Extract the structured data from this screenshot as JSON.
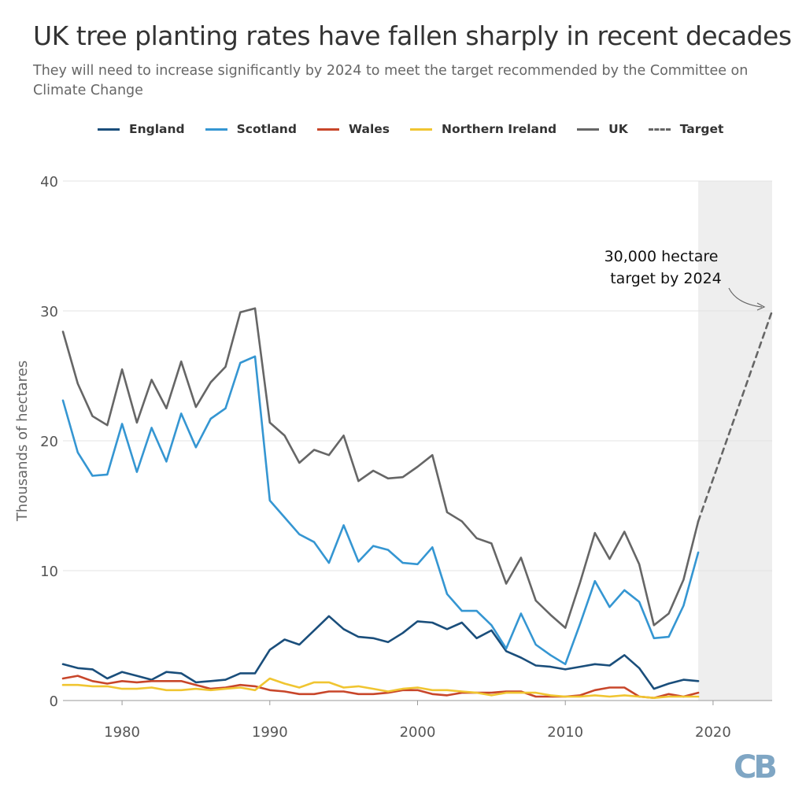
{
  "title": "UK tree planting rates have fallen sharply in recent decades",
  "subtitle": "They will need to increase significantly by 2024 to meet the target recommended by the Committee on Climate Change",
  "annotation": [
    "30,000 hectare",
    "target by 2024"
  ],
  "logo": "CB",
  "colors": {
    "England": "#1a4e7b",
    "Scotland": "#3596d2",
    "Wales": "#c8462a",
    "Northern Ireland": "#f0c531",
    "UK": "#666666",
    "Target": "#666666",
    "shade": "#eeeeee"
  },
  "chart_data": {
    "type": "line",
    "title": "UK tree planting rates have fallen sharply in recent decades",
    "xlabel": "",
    "ylabel": "Thousands of hectares",
    "xlim": [
      1976,
      2024
    ],
    "ylim": [
      0,
      40
    ],
    "x_ticks": [
      1980,
      1990,
      2000,
      2010,
      2020
    ],
    "y_ticks": [
      0,
      10,
      20,
      30,
      40
    ],
    "legend_position": "top",
    "shaded_range": [
      2019,
      2024
    ],
    "x": [
      1976,
      1977,
      1978,
      1979,
      1980,
      1981,
      1982,
      1983,
      1984,
      1985,
      1986,
      1987,
      1988,
      1989,
      1990,
      1991,
      1992,
      1993,
      1994,
      1995,
      1996,
      1997,
      1998,
      1999,
      2000,
      2001,
      2002,
      2003,
      2004,
      2005,
      2006,
      2007,
      2008,
      2009,
      2010,
      2011,
      2012,
      2013,
      2014,
      2015,
      2016,
      2017,
      2018,
      2019
    ],
    "series": [
      {
        "name": "England",
        "values": [
          2.8,
          2.5,
          2.4,
          1.7,
          2.2,
          1.9,
          1.6,
          2.2,
          2.1,
          1.4,
          1.5,
          1.6,
          2.1,
          2.1,
          3.9,
          4.7,
          4.3,
          5.4,
          6.5,
          5.5,
          4.9,
          4.8,
          4.5,
          5.2,
          6.1,
          6.0,
          5.5,
          6.0,
          4.8,
          5.4,
          3.8,
          3.3,
          2.7,
          2.6,
          2.4,
          2.6,
          2.8,
          2.7,
          3.5,
          2.5,
          0.9,
          1.3,
          1.6,
          1.5
        ]
      },
      {
        "name": "Scotland",
        "values": [
          23.1,
          19.1,
          17.3,
          17.4,
          21.3,
          17.6,
          21.0,
          18.4,
          22.1,
          19.5,
          21.7,
          22.5,
          26.0,
          26.5,
          15.4,
          14.1,
          12.8,
          12.2,
          10.6,
          13.5,
          10.7,
          11.9,
          11.6,
          10.6,
          10.5,
          11.8,
          8.2,
          6.9,
          6.9,
          5.8,
          4.0,
          6.7,
          4.3,
          3.5,
          2.8,
          5.9,
          9.2,
          7.2,
          8.5,
          7.6,
          4.8,
          4.9,
          7.3,
          11.4
        ]
      },
      {
        "name": "Wales",
        "values": [
          1.7,
          1.9,
          1.5,
          1.3,
          1.5,
          1.4,
          1.5,
          1.5,
          1.5,
          1.2,
          0.9,
          1.0,
          1.2,
          1.1,
          0.8,
          0.7,
          0.5,
          0.5,
          0.7,
          0.7,
          0.5,
          0.5,
          0.6,
          0.8,
          0.8,
          0.5,
          0.4,
          0.6,
          0.6,
          0.6,
          0.7,
          0.7,
          0.3,
          0.3,
          0.3,
          0.4,
          0.8,
          1.0,
          1.0,
          0.3,
          0.2,
          0.5,
          0.3,
          0.6
        ]
      },
      {
        "name": "Northern Ireland",
        "values": [
          1.2,
          1.2,
          1.1,
          1.1,
          0.9,
          0.9,
          1.0,
          0.8,
          0.8,
          0.9,
          0.8,
          0.9,
          1.0,
          0.8,
          1.7,
          1.3,
          1.0,
          1.4,
          1.4,
          1.0,
          1.1,
          0.9,
          0.7,
          0.9,
          1.0,
          0.8,
          0.8,
          0.7,
          0.6,
          0.4,
          0.6,
          0.6,
          0.6,
          0.4,
          0.3,
          0.3,
          0.4,
          0.3,
          0.4,
          0.3,
          0.2,
          0.3,
          0.3,
          0.3
        ]
      },
      {
        "name": "UK",
        "values": [
          28.4,
          24.4,
          21.9,
          21.2,
          25.5,
          21.4,
          24.7,
          22.5,
          26.1,
          22.6,
          24.5,
          25.7,
          29.9,
          30.2,
          21.4,
          20.4,
          18.3,
          19.3,
          18.9,
          20.4,
          16.9,
          17.7,
          17.1,
          17.2,
          18.0,
          18.9,
          14.5,
          13.8,
          12.5,
          12.1,
          9.0,
          11.0,
          7.7,
          6.6,
          5.6,
          9.1,
          12.9,
          10.9,
          13.0,
          10.5,
          5.8,
          6.7,
          9.3,
          13.8
        ]
      },
      {
        "name": "Target",
        "x": [
          2019,
          2024
        ],
        "values": [
          13.8,
          30.0
        ]
      }
    ]
  }
}
